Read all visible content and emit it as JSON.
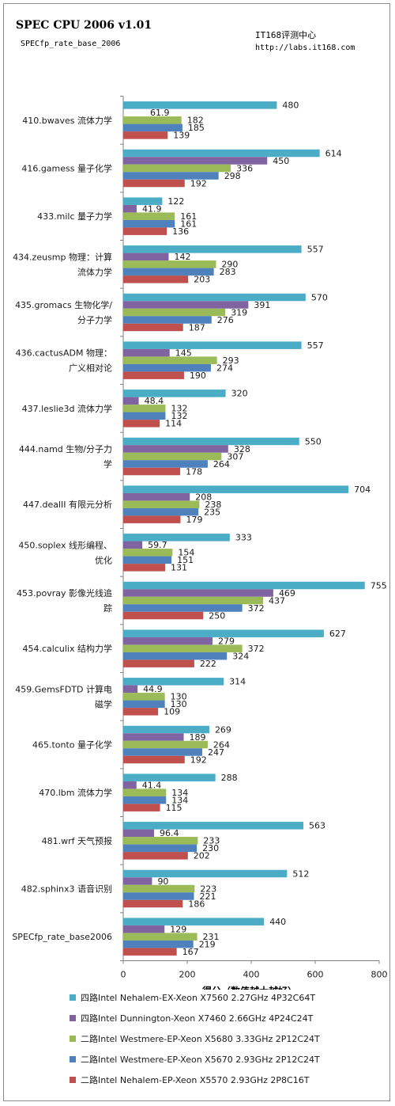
{
  "header": {
    "title": "SPEC CPU 2006 v1.01",
    "subtitle": "SPECfp_rate_base_2006",
    "brand": "IT168评测中心",
    "url": "http://labs.it168.com"
  },
  "chart_data": {
    "type": "bar",
    "orientation": "horizontal",
    "title": "SPEC CPU 2006 v1.01",
    "subtitle": "SPECfp_rate_base_2006",
    "xlabel": "得分（数值越大越好）",
    "ylabel": "",
    "xlim": [
      0,
      800
    ],
    "xticks": [
      0,
      200,
      400,
      600,
      800
    ],
    "grid": false,
    "legend_position": "bottom",
    "categories": [
      [
        "410.bwaves 流体力学"
      ],
      [
        "416.gamess 量子化学"
      ],
      [
        "433.milc 量子力学"
      ],
      [
        "434.zeusmp 物理：计算",
        "流体力学"
      ],
      [
        "435.gromacs 生物化学/",
        "分子力学"
      ],
      [
        "436.cactusADM 物理：",
        "广义相对论"
      ],
      [
        "437.leslie3d 流体力学"
      ],
      [
        "444.namd 生物/分子力",
        "学"
      ],
      [
        "447.dealII 有限元分析"
      ],
      [
        "450.soplex 线形编程、",
        "优化"
      ],
      [
        "453.povray 影像光线追",
        "踪"
      ],
      [
        "454.calculix 结构力学"
      ],
      [
        "459.GemsFDTD 计算电",
        "磁学"
      ],
      [
        "465.tonto 量子化学"
      ],
      [
        "470.lbm 流体力学"
      ],
      [
        "481.wrf 天气预报"
      ],
      [
        "482.sphinx3 语音识别"
      ],
      [
        "SPECfp_rate_base2006"
      ]
    ],
    "series": [
      {
        "name": "四路Intel Nehalem-EX-Xeon  X7560 2.27GHz 4P32C64T",
        "color": "#4bacc6",
        "values": [
          480,
          614,
          122,
          557,
          570,
          557,
          320,
          550,
          704,
          333,
          755,
          627,
          314,
          269,
          288,
          563,
          512,
          440
        ],
        "labels": [
          "480",
          "614",
          "122",
          "557",
          "570",
          "557",
          "320",
          "550",
          "704",
          "333",
          "755",
          "627",
          "314",
          "269",
          "288",
          "563",
          "512",
          "440"
        ]
      },
      {
        "name": "四路Intel Dunnington-Xeon  X7460 2.66GHz 4P24C24T",
        "color": "#8064a2",
        "values": [
          null,
          450,
          41.9,
          142,
          391,
          145,
          48.4,
          328,
          208,
          59.7,
          469,
          279,
          44.9,
          189,
          41.4,
          96.4,
          90,
          129
        ],
        "labels": [
          "",
          "450",
          "41.9",
          "142",
          "391",
          "145",
          "48.4",
          "328",
          "208",
          "59.7",
          "469",
          "279",
          "44.9",
          "189",
          "41.4",
          "96.4",
          "90",
          "129"
        ]
      },
      {
        "name": "二路Intel Westmere-EP-Xeon  X5680 3.33GHz 2P12C24T",
        "color": "#9bbb59",
        "values": [
          182,
          336,
          161,
          290,
          319,
          293,
          132,
          307,
          238,
          154,
          437,
          372,
          130,
          264,
          134,
          233,
          223,
          231
        ],
        "labels": [
          "182",
          "336",
          "161",
          "290",
          "319",
          "293",
          "132",
          "307",
          "238",
          "154",
          "437",
          "372",
          "130",
          "264",
          "134",
          "233",
          "223",
          "231"
        ]
      },
      {
        "name": "二路Intel Westmere-EP-Xeon  X5670 2.93GHz 2P12C24T",
        "color": "#4f81bd",
        "values": [
          185,
          298,
          161,
          283,
          276,
          274,
          132,
          264,
          235,
          151,
          372,
          324,
          130,
          247,
          134,
          230,
          221,
          219
        ],
        "labels": [
          "185",
          "298",
          "161",
          "283",
          "276",
          "274",
          "132",
          "264",
          "235",
          "151",
          "372",
          "324",
          "130",
          "247",
          "134",
          "230",
          "221",
          "219"
        ]
      },
      {
        "name": "二路Intel Nehalem-EP-Xeon  X5570 2.93GHz 2P8C16T",
        "color": "#c0504d",
        "values": [
          139,
          192,
          136,
          203,
          187,
          190,
          114,
          178,
          179,
          131,
          250,
          222,
          109,
          192,
          115,
          202,
          186,
          167
        ],
        "labels": [
          "139",
          "192",
          "136",
          "203",
          "187",
          "190",
          "114",
          "178",
          "179",
          "131",
          "250",
          "222",
          "109",
          "192",
          "115",
          "202",
          "186",
          "167"
        ]
      }
    ],
    "extra_labels": [
      {
        "category_index": 0,
        "series_index": 1,
        "text": "61.9"
      }
    ]
  }
}
